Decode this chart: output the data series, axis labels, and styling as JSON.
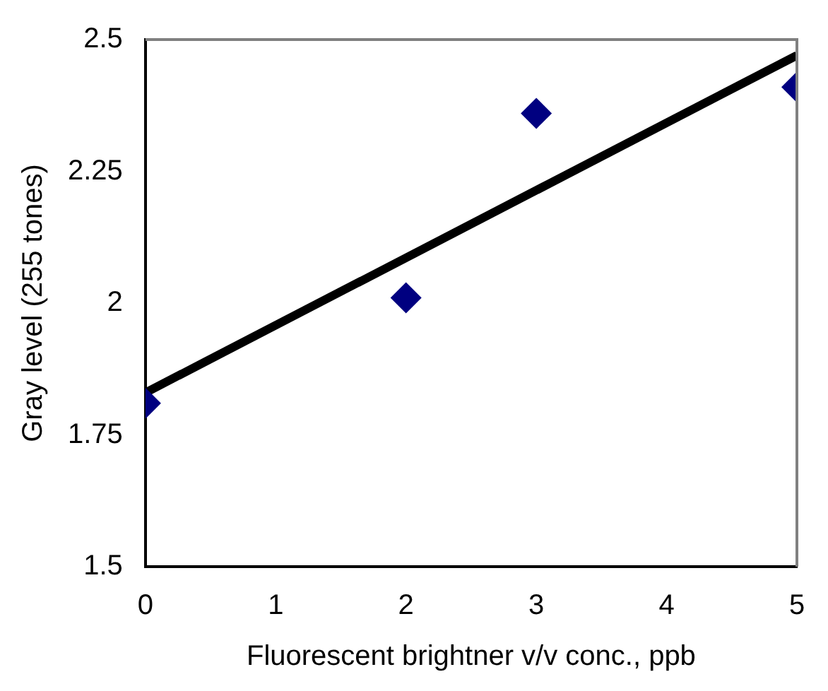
{
  "chart_data": {
    "type": "scatter",
    "xlabel": "Fluorescent brightner v/v conc., ppb",
    "ylabel": "Gray level (255 tones)",
    "xlim": [
      0,
      5
    ],
    "xticks": [
      0,
      1,
      2,
      3,
      4,
      5
    ],
    "ylim": [
      1.5,
      2.5
    ],
    "yticks": [
      1.5,
      1.75,
      2,
      2.25,
      2.5
    ],
    "grid": false,
    "legend": false,
    "series": [
      {
        "type": "scatter",
        "color": "#000080",
        "marker": "diamond",
        "x": [
          0,
          2,
          3,
          5
        ],
        "values": [
          1.81,
          2.01,
          2.36,
          2.41
        ]
      },
      {
        "type": "line",
        "color": "#000000",
        "marker": "none",
        "line_style": "solid",
        "x": [
          0,
          5
        ],
        "values": [
          1.83,
          2.47
        ]
      }
    ]
  }
}
